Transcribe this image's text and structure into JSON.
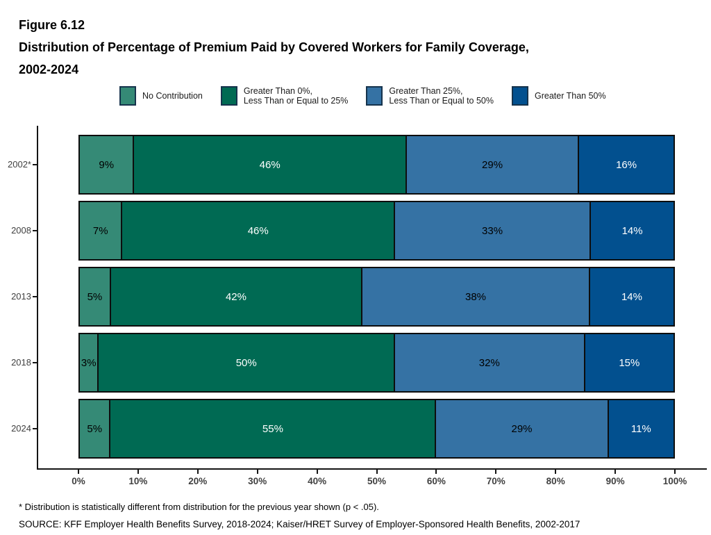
{
  "figure": {
    "label": "Figure 6.12",
    "title_line1": "Distribution of Percentage of Premium Paid by Covered Workers for Family Coverage,",
    "title_line2": "2002-2024"
  },
  "legend": [
    {
      "name": "no-contribution",
      "label": "No Contribution",
      "color": "#358a76"
    },
    {
      "name": "gt0-le25",
      "label": "Greater Than 0%,\nLess Than or Equal to 25%",
      "color": "#006a53"
    },
    {
      "name": "gt25-le50",
      "label": "Greater Than 25%,\nLess Than or Equal to 50%",
      "color": "#3572a4"
    },
    {
      "name": "gt50",
      "label": "Greater Than 50%",
      "color": "#02508f"
    }
  ],
  "chart_data": {
    "type": "bar",
    "orientation": "horizontal",
    "stacked": true,
    "categories": [
      "2002*",
      "2008",
      "2013",
      "2018",
      "2024"
    ],
    "series": [
      {
        "name": "No Contribution",
        "color": "#358a76",
        "label_color": "#000000",
        "values": [
          9,
          7,
          5,
          3,
          5
        ]
      },
      {
        "name": "Greater Than 0%, Less Than or Equal to 25%",
        "color": "#006a53",
        "label_color": "#ffffff",
        "values": [
          46,
          46,
          42,
          50,
          55
        ]
      },
      {
        "name": "Greater Than 25%, Less Than or Equal to 50%",
        "color": "#3572a4",
        "label_color": "#000000",
        "values": [
          29,
          33,
          38,
          32,
          29
        ]
      },
      {
        "name": "Greater Than 50%",
        "color": "#02508f",
        "label_color": "#ffffff",
        "values": [
          16,
          14,
          14,
          15,
          11
        ]
      }
    ],
    "value_suffix": "%",
    "x_ticks": [
      "0%",
      "10%",
      "20%",
      "30%",
      "40%",
      "50%",
      "60%",
      "70%",
      "80%",
      "90%",
      "100%"
    ],
    "xlim": [
      0,
      100
    ],
    "grid": false,
    "legend_position": "top"
  },
  "footnotes": {
    "note": "* Distribution is statistically different from distribution for the previous year shown (p < .05).",
    "source": "SOURCE: KFF Employer Health Benefits Survey, 2018-2024; Kaiser/HRET Survey of Employer-Sponsored Health Benefits, 2002-2017"
  }
}
